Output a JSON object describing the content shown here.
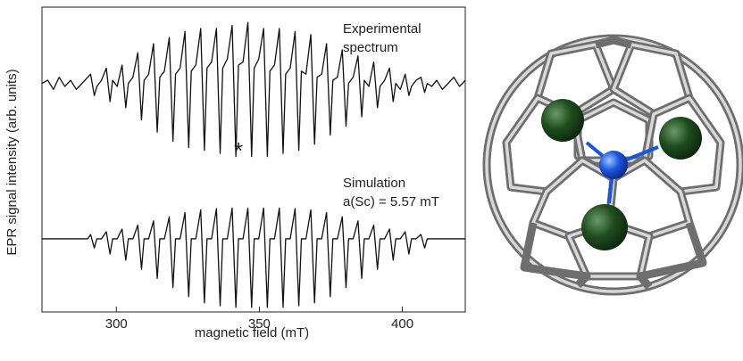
{
  "chart_data": {
    "type": "line",
    "xlabel": "magnetic field (mT)",
    "ylabel": "EPR signal intensity (arb. units)",
    "annotations": [
      [
        "Experimental",
        "spectrum"
      ],
      [
        "Simulation",
        "a(Sc) = 5.57 mT"
      ],
      "*"
    ],
    "xlim": [
      274,
      422
    ],
    "xticks": [
      300,
      350,
      400
    ],
    "ylim": [
      0,
      1
    ],
    "x": [
      274,
      276,
      278,
      280,
      282,
      284,
      286,
      288,
      290,
      291,
      292.3,
      293.2,
      294.8,
      296.5,
      297.8,
      298.7,
      300.3,
      302,
      303.3,
      304.2,
      305.8,
      307.5,
      308.8,
      309.7,
      311.3,
      313,
      314.3,
      315.2,
      316.8,
      318.5,
      319.8,
      320.7,
      322.3,
      324,
      325.3,
      326.2,
      327.8,
      329.5,
      330.8,
      331.7,
      333.3,
      335,
      336.3,
      337.2,
      338.8,
      340.5,
      341.8,
      342.7,
      344.3,
      346,
      347.3,
      348.2,
      349.8,
      351.5,
      352.8,
      353.7,
      355.3,
      357,
      358.3,
      359.2,
      360.8,
      362.5,
      363.8,
      364.7,
      366.3,
      368,
      369.3,
      370.2,
      371.8,
      373.5,
      374.8,
      375.7,
      377.3,
      379,
      380.3,
      381.2,
      382.8,
      384.5,
      385.8,
      386.7,
      388.3,
      390,
      391.3,
      392.2,
      393.8,
      395.5,
      396.8,
      397.7,
      399.3,
      401,
      402.3,
      403.2,
      404.8,
      406.5,
      407.8,
      408.7,
      410.3,
      412,
      414,
      416,
      418,
      420,
      422
    ],
    "series": [
      {
        "color": "#111111",
        "values": [
          0.75,
          0.76,
          0.73,
          0.77,
          0.74,
          0.76,
          0.73,
          0.75,
          0.77,
          0.78,
          0.71,
          0.74,
          0.76,
          0.8,
          0.69,
          0.76,
          0.74,
          0.81,
          0.67,
          0.75,
          0.77,
          0.85,
          0.63,
          0.76,
          0.78,
          0.88,
          0.59,
          0.77,
          0.79,
          0.9,
          0.56,
          0.78,
          0.8,
          0.92,
          0.54,
          0.79,
          0.81,
          0.93,
          0.53,
          0.8,
          0.82,
          0.93,
          0.52,
          0.8,
          0.83,
          0.94,
          0.51,
          0.81,
          0.82,
          0.95,
          0.51,
          0.8,
          0.83,
          0.93,
          0.51,
          0.79,
          0.81,
          0.93,
          0.52,
          0.78,
          0.8,
          0.92,
          0.53,
          0.79,
          0.78,
          0.91,
          0.55,
          0.77,
          0.78,
          0.88,
          0.58,
          0.76,
          0.77,
          0.86,
          0.61,
          0.75,
          0.77,
          0.84,
          0.64,
          0.76,
          0.74,
          0.82,
          0.67,
          0.74,
          0.76,
          0.8,
          0.69,
          0.75,
          0.73,
          0.78,
          0.71,
          0.74,
          0.76,
          0.77,
          0.72,
          0.75,
          0.74,
          0.76,
          0.73,
          0.75,
          0.77,
          0.74,
          0.76
        ]
      },
      {
        "color": "#111111",
        "values": [
          0.24,
          0.24,
          0.24,
          0.24,
          0.24,
          0.24,
          0.24,
          0.24,
          0.24,
          0.254,
          0.21,
          0.24,
          0.24,
          0.263,
          0.19,
          0.24,
          0.24,
          0.272,
          0.17,
          0.24,
          0.24,
          0.285,
          0.14,
          0.24,
          0.24,
          0.299,
          0.11,
          0.24,
          0.24,
          0.312,
          0.08,
          0.24,
          0.24,
          0.326,
          0.05,
          0.24,
          0.24,
          0.335,
          0.03,
          0.24,
          0.24,
          0.339,
          0.02,
          0.24,
          0.24,
          0.341,
          0.015,
          0.24,
          0.24,
          0.341,
          0.015,
          0.24,
          0.24,
          0.341,
          0.015,
          0.24,
          0.24,
          0.341,
          0.015,
          0.24,
          0.24,
          0.339,
          0.02,
          0.24,
          0.24,
          0.335,
          0.03,
          0.24,
          0.24,
          0.326,
          0.05,
          0.24,
          0.24,
          0.312,
          0.08,
          0.24,
          0.24,
          0.299,
          0.11,
          0.24,
          0.24,
          0.285,
          0.14,
          0.24,
          0.24,
          0.272,
          0.17,
          0.24,
          0.24,
          0.263,
          0.19,
          0.24,
          0.24,
          0.254,
          0.21,
          0.24,
          0.24,
          0.24,
          0.24,
          0.24,
          0.24,
          0.24,
          0.24
        ]
      }
    ]
  }
}
